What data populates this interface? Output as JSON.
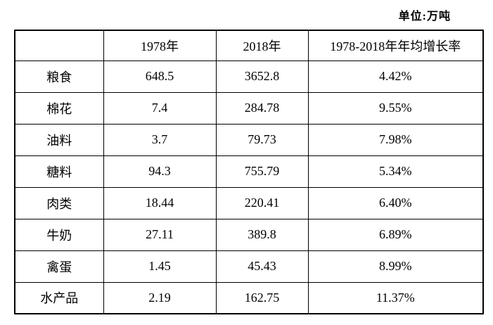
{
  "unit_label": "单位:万吨",
  "table": {
    "headers": [
      "",
      "1978年",
      "2018年",
      "1978-2018年年均增长率"
    ],
    "rows": [
      {
        "label": "粮食",
        "v1978": "648.5",
        "v2018": "3652.8",
        "growth": "4.42%"
      },
      {
        "label": "棉花",
        "v1978": "7.4",
        "v2018": "284.78",
        "growth": "9.55%"
      },
      {
        "label": "油料",
        "v1978": "3.7",
        "v2018": "79.73",
        "growth": "7.98%"
      },
      {
        "label": "糖料",
        "v1978": "94.3",
        "v2018": "755.79",
        "growth": "5.34%"
      },
      {
        "label": "肉类",
        "v1978": "18.44",
        "v2018": "220.41",
        "growth": "6.40%"
      },
      {
        "label": "牛奶",
        "v1978": "27.11",
        "v2018": "389.8",
        "growth": "6.89%"
      },
      {
        "label": "禽蛋",
        "v1978": "1.45",
        "v2018": "45.43",
        "growth": "8.99%"
      },
      {
        "label": "水产品",
        "v1978": "2.19",
        "v2018": "162.75",
        "growth": "11.37%"
      }
    ]
  }
}
